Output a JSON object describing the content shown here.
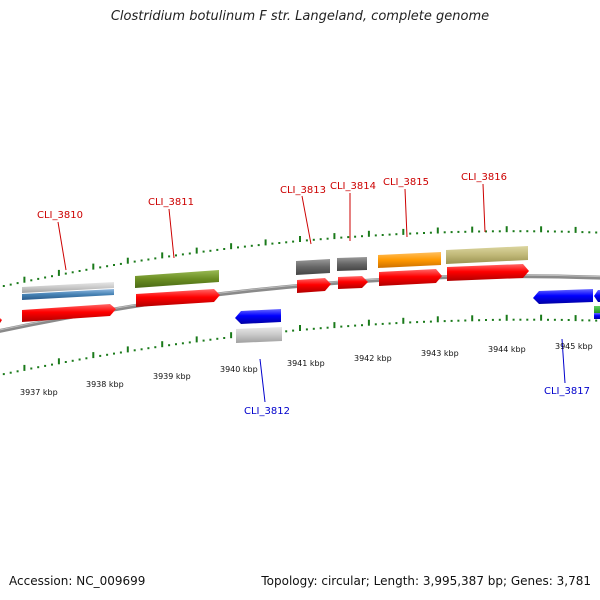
{
  "title": "Clostridium botulinum F str. Langeland, complete genome",
  "footer": {
    "accession": "Accession: NC_009699",
    "topology": "Topology: circular; Length: 3,995,387 bp; Genes: 3,781"
  },
  "colors": {
    "forward_label": "#cc0000",
    "reverse_label": "#0000cc",
    "tick": "#1a7a1a",
    "backbone": "#8a8a8a"
  },
  "scale_labels": [
    "3937 kbp",
    "3938 kbp",
    "3939 kbp",
    "3940 kbp",
    "3941 kbp",
    "3942 kbp",
    "3943 kbp",
    "3944 kbp",
    "3945 kbp"
  ],
  "gene_labels": [
    {
      "text": "CLI_3810",
      "strand": "forward"
    },
    {
      "text": "CLI_3811",
      "strand": "forward"
    },
    {
      "text": "CLI_3813",
      "strand": "forward"
    },
    {
      "text": "CLI_3814",
      "strand": "forward"
    },
    {
      "text": "CLI_3815",
      "strand": "forward"
    },
    {
      "text": "CLI_3816",
      "strand": "forward"
    },
    {
      "text": "CLI_3812",
      "strand": "reverse"
    },
    {
      "text": "CLI_3817",
      "strand": "reverse"
    }
  ]
}
